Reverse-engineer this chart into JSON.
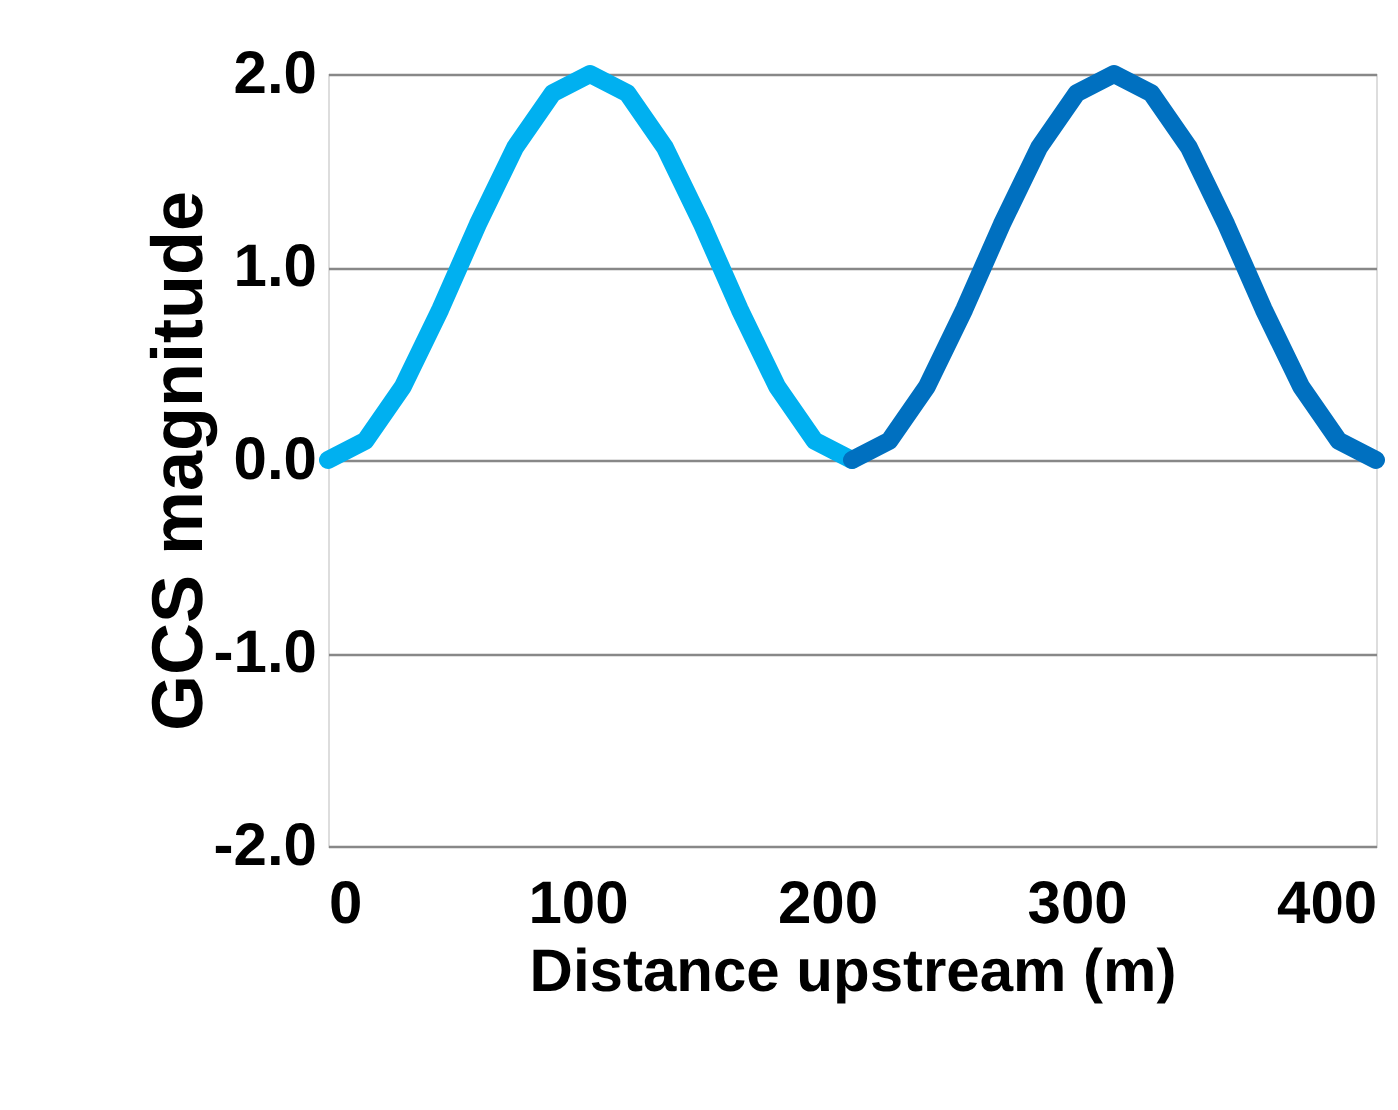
{
  "chart_data": {
    "type": "line",
    "xlabel": "Distance upstream (m)",
    "ylabel": "GCS magnitude",
    "xlim": [
      0,
      420
    ],
    "xticks": [
      0,
      100,
      200,
      300,
      400
    ],
    "ylim": [
      -2,
      2
    ],
    "yticks": [
      {
        "value": -2,
        "label": "-2.0"
      },
      {
        "value": -1,
        "label": "-1.0"
      },
      {
        "value": 0,
        "label": "0.0"
      },
      {
        "value": 1,
        "label": "1.0"
      },
      {
        "value": 2,
        "label": "2.0"
      }
    ],
    "grid": "y",
    "marker": "none",
    "line_style": "solid",
    "series": [
      {
        "color": "#00b0f0",
        "x": [
          0,
          15,
          30,
          45,
          60,
          75,
          90,
          105,
          120,
          135,
          150,
          165,
          180,
          195,
          210
        ],
        "values": [
          0,
          0.1,
          0.38,
          0.78,
          1.22,
          1.62,
          1.9,
          2.0,
          1.9,
          1.62,
          1.22,
          0.78,
          0.38,
          0.1,
          0
        ]
      },
      {
        "color": "#0070c0",
        "x": [
          210,
          225,
          240,
          255,
          270,
          285,
          300,
          315,
          330,
          345,
          360,
          375,
          390,
          405,
          420
        ],
        "values": [
          0,
          0.1,
          0.38,
          0.78,
          1.22,
          1.62,
          1.9,
          2.0,
          1.9,
          1.62,
          1.22,
          0.78,
          0.38,
          0.1,
          0
        ]
      }
    ]
  }
}
